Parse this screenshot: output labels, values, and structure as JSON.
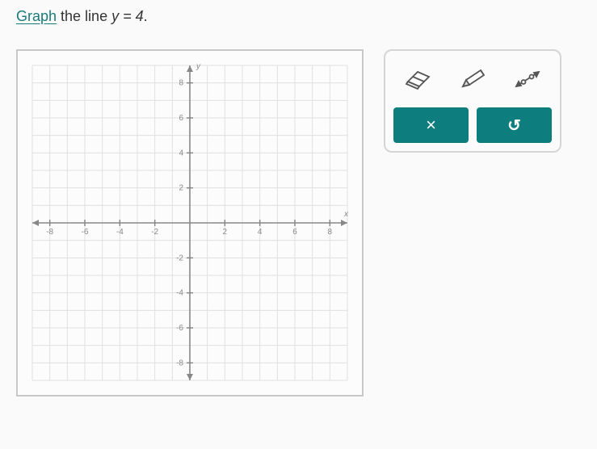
{
  "instruction": {
    "link_text": "Graph",
    "rest_text": " the line ",
    "equation": "y = 4",
    "period": "."
  },
  "graph": {
    "xlim": [
      -9,
      9
    ],
    "ylim": [
      -9,
      9
    ],
    "tick_step": 2,
    "y_ticks": [
      -8,
      -6,
      -4,
      -2,
      2,
      4,
      6,
      8
    ],
    "x_ticks": [
      -8,
      -6,
      -4,
      -2,
      2,
      4,
      6,
      8
    ],
    "grid_color": "#e0e0e0",
    "axis_color": "#888888",
    "tick_color": "#999999",
    "label_color": "#888888",
    "background_color": "#fcfcfc",
    "label_fontsize": 10,
    "y_label": "y",
    "x_label": "x"
  },
  "toolbox": {
    "tools": {
      "eraser": "eraser-icon",
      "pencil": "pencil-icon",
      "line": "line-icon"
    },
    "buttons": {
      "clear_symbol": "×",
      "undo_symbol": "↺",
      "button_bg": "#0d7d7d",
      "button_text_color": "#ffffff"
    },
    "icon_stroke": "#555555"
  }
}
